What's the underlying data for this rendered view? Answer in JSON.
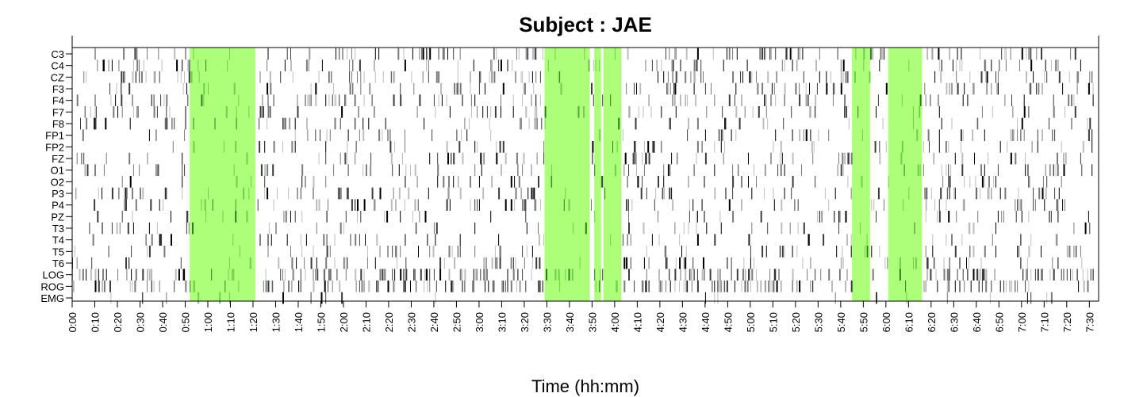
{
  "chart_data": {
    "type": "heatmap",
    "title": "Subject : JAE",
    "xlabel": "Time (hh:mm)",
    "ylabel": "",
    "xlim_minutes": [
      0,
      452
    ],
    "channels": [
      "C3",
      "C4",
      "CZ",
      "F3",
      "F4",
      "F7",
      "F8",
      "FP1",
      "FP2",
      "FZ",
      "O1",
      "O2",
      "P3",
      "P4",
      "PZ",
      "T3",
      "T4",
      "T5",
      "T6",
      "LOG",
      "ROG",
      "EMG"
    ],
    "x_ticks": [
      "0:00",
      "0:10",
      "0:20",
      "0:30",
      "0:40",
      "0:50",
      "1:00",
      "1:10",
      "1:20",
      "1:30",
      "1:40",
      "1:50",
      "2:00",
      "2:10",
      "2:20",
      "2:30",
      "2:40",
      "2:50",
      "3:00",
      "3:10",
      "3:20",
      "3:30",
      "3:40",
      "3:50",
      "4:00",
      "4:10",
      "4:20",
      "4:30",
      "4:40",
      "4:50",
      "5:00",
      "5:10",
      "5:20",
      "5:30",
      "5:40",
      "5:50",
      "6:00",
      "6:10",
      "6:20",
      "6:30",
      "6:40",
      "6:50",
      "7:00",
      "7:10",
      "7:20",
      "7:30"
    ],
    "highlight_color": "#adff7a",
    "highlight_intervals_minutes": [
      [
        52,
        81
      ],
      [
        209,
        229
      ],
      [
        231,
        234
      ],
      [
        235,
        243
      ],
      [
        345,
        353
      ],
      [
        361,
        376
      ]
    ],
    "event_colors": [
      "#000000",
      "#3c3c3c",
      "#7a7a7a",
      "#bdbdbd"
    ],
    "channel_density": [
      0.12,
      0.1,
      0.13,
      0.1,
      0.1,
      0.09,
      0.08,
      0.06,
      0.06,
      0.1,
      0.09,
      0.08,
      0.1,
      0.1,
      0.1,
      0.07,
      0.07,
      0.07,
      0.08,
      0.22,
      0.2,
      0.02
    ],
    "grid": false,
    "legend": "none"
  }
}
